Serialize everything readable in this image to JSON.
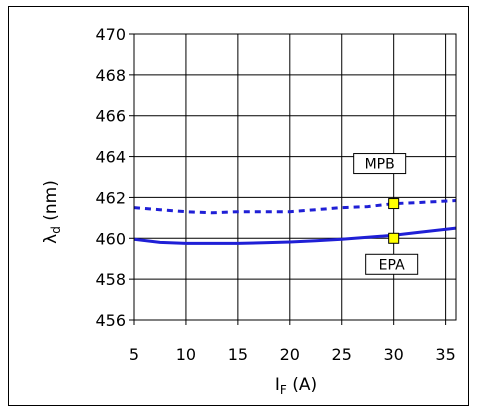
{
  "chart_data": {
    "type": "line",
    "x_axis": {
      "label_main": "I",
      "label_sub": "F",
      "label_unit": " (A)",
      "ticks": [
        5,
        10,
        15,
        20,
        25,
        30,
        35
      ],
      "range": [
        5,
        36
      ]
    },
    "y_axis": {
      "label_main": "λ",
      "label_sub": "d",
      "label_unit": " (nm)",
      "ticks": [
        456,
        458,
        460,
        462,
        464,
        466,
        468,
        470
      ],
      "range": [
        456,
        470
      ]
    },
    "grid": true,
    "series": [
      {
        "name": "",
        "style": "dashed",
        "color": "#1f1fd6",
        "x": [
          5,
          7.5,
          10,
          12.5,
          15,
          17.5,
          20,
          22.5,
          25,
          27.5,
          30,
          32.5,
          36
        ],
        "y": [
          461.5,
          461.4,
          461.3,
          461.25,
          461.3,
          461.3,
          461.3,
          461.4,
          461.5,
          461.55,
          461.7,
          461.75,
          461.85
        ]
      },
      {
        "name": "",
        "style": "solid",
        "color": "#1f1fd6",
        "x": [
          5,
          7.5,
          10,
          12.5,
          15,
          17.5,
          20,
          22.5,
          25,
          27.5,
          30,
          32.5,
          36
        ],
        "y": [
          459.95,
          459.8,
          459.75,
          459.75,
          459.75,
          459.78,
          459.82,
          459.88,
          459.95,
          460.05,
          460.15,
          460.3,
          460.5
        ]
      }
    ],
    "markers": [
      {
        "label": "MPB",
        "x": 30,
        "y": 461.7,
        "color": "#ffff00"
      },
      {
        "label": "EPA",
        "x": 30,
        "y": 460,
        "color": "#ffff00"
      }
    ]
  }
}
